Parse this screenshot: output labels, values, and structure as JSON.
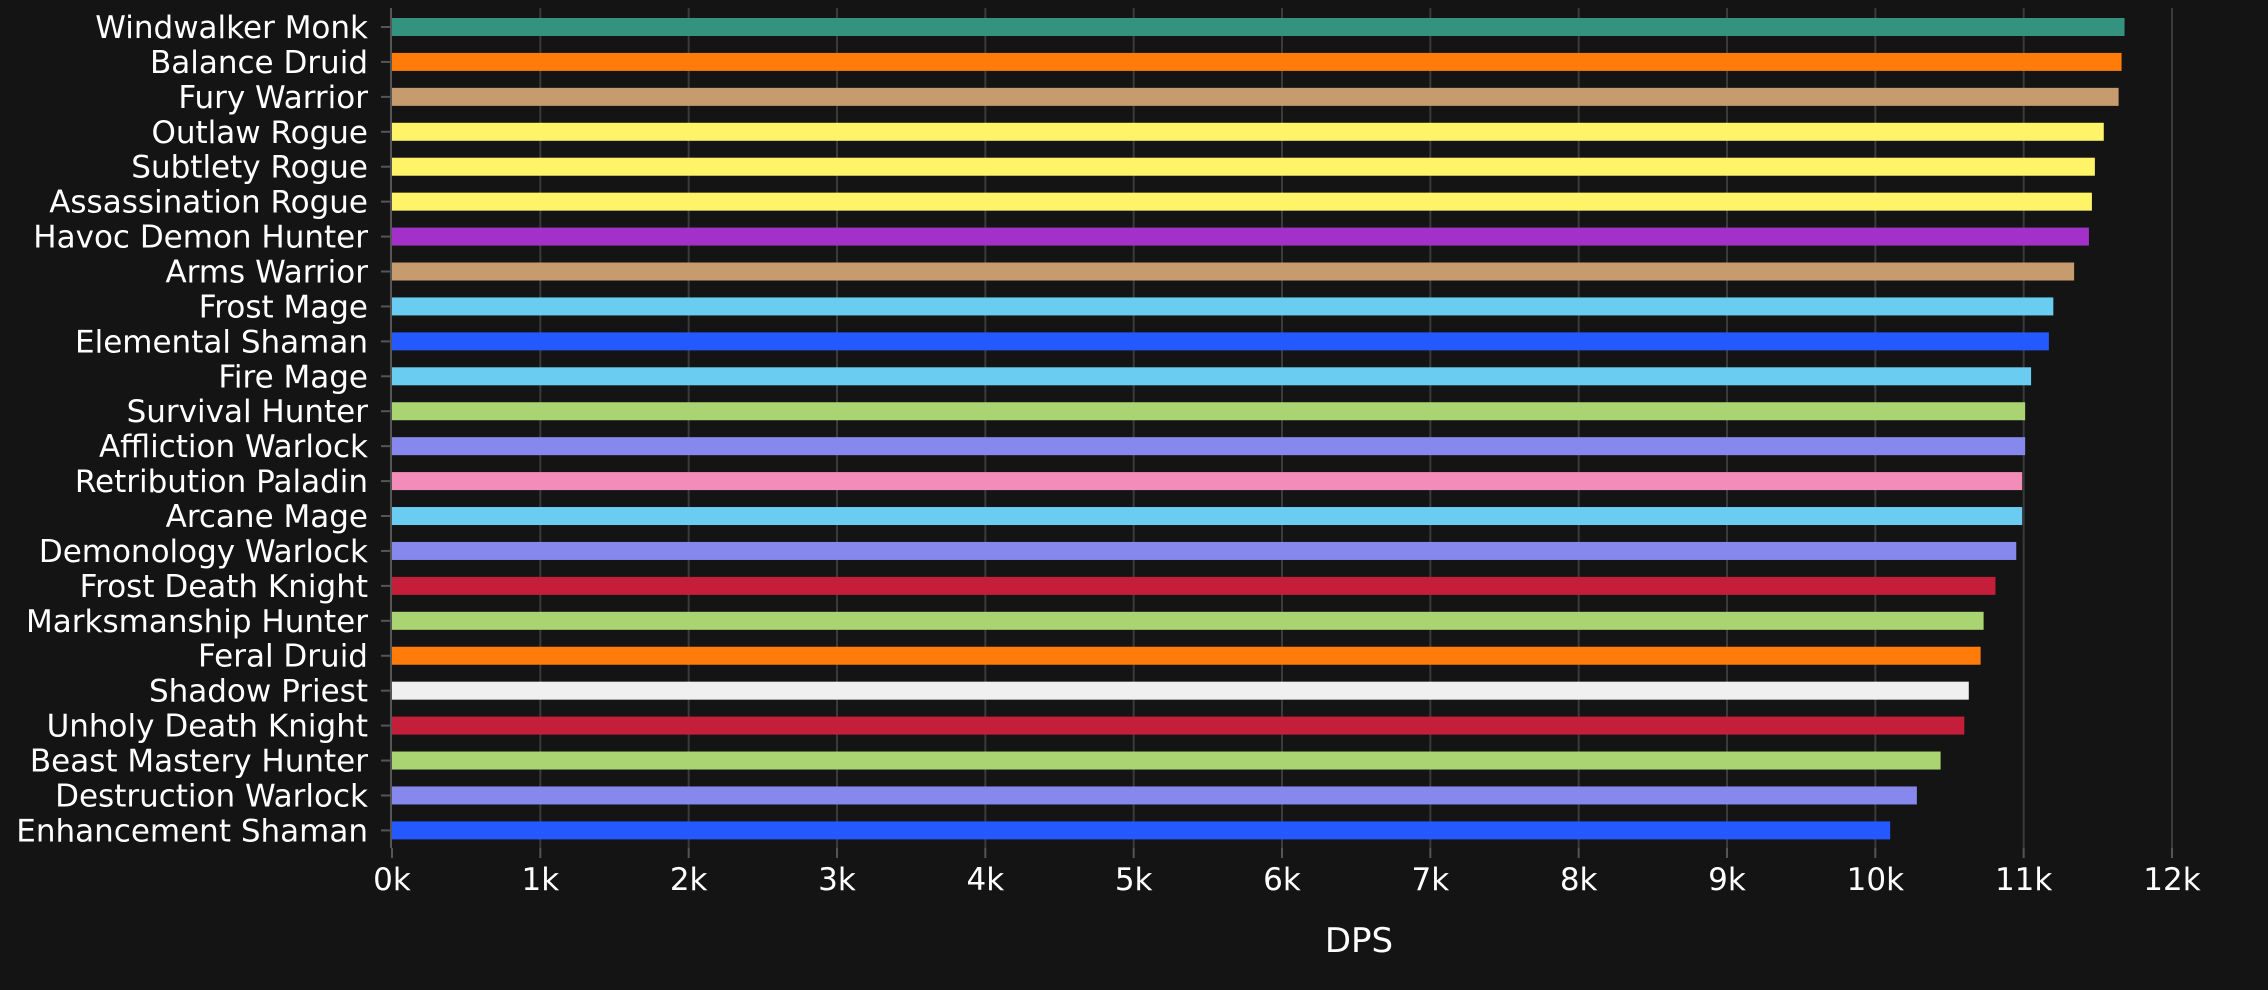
{
  "chart_data": {
    "type": "bar",
    "orientation": "horizontal",
    "xlabel": "DPS",
    "ylabel": "",
    "xlim": [
      0,
      12000
    ],
    "xticks": [
      {
        "value": 0,
        "label": "0k"
      },
      {
        "value": 1000,
        "label": "1k"
      },
      {
        "value": 2000,
        "label": "2k"
      },
      {
        "value": 3000,
        "label": "3k"
      },
      {
        "value": 4000,
        "label": "4k"
      },
      {
        "value": 5000,
        "label": "5k"
      },
      {
        "value": 6000,
        "label": "6k"
      },
      {
        "value": 7000,
        "label": "7k"
      },
      {
        "value": 8000,
        "label": "8k"
      },
      {
        "value": 9000,
        "label": "9k"
      },
      {
        "value": 10000,
        "label": "10k"
      },
      {
        "value": 11000,
        "label": "11k"
      },
      {
        "value": 12000,
        "label": "12k"
      }
    ],
    "grid": "vertical",
    "categories": [
      "Windwalker Monk",
      "Balance Druid",
      "Fury Warrior",
      "Outlaw Rogue",
      "Subtlety Rogue",
      "Assassination Rogue",
      "Havoc Demon Hunter",
      "Arms Warrior",
      "Frost Mage",
      "Elemental Shaman",
      "Fire Mage",
      "Survival Hunter",
      "Affliction Warlock",
      "Retribution Paladin",
      "Arcane Mage",
      "Demonology Warlock",
      "Frost Death Knight",
      "Marksmanship Hunter",
      "Feral Druid",
      "Shadow Priest",
      "Unholy Death Knight",
      "Beast Mastery Hunter",
      "Destruction Warlock",
      "Enhancement Shaman"
    ],
    "values": [
      11680,
      11660,
      11640,
      11540,
      11480,
      11460,
      11440,
      11340,
      11200,
      11170,
      11050,
      11010,
      11010,
      10990,
      10990,
      10950,
      10810,
      10730,
      10710,
      10630,
      10600,
      10440,
      10280,
      10100
    ],
    "colors": [
      "#33937f",
      "#ff7c0a",
      "#c69b6d",
      "#fff468",
      "#fff468",
      "#fff468",
      "#a330c9",
      "#c69b6d",
      "#69ccf0",
      "#2359ff",
      "#69ccf0",
      "#aad372",
      "#8788ee",
      "#f48cba",
      "#69ccf0",
      "#8788ee",
      "#c41e3a",
      "#aad372",
      "#ff7c0a",
      "#f0f0f0",
      "#c41e3a",
      "#aad372",
      "#8788ee",
      "#2359ff"
    ],
    "background": "#141414",
    "grid_color": "#3a3a3a"
  }
}
